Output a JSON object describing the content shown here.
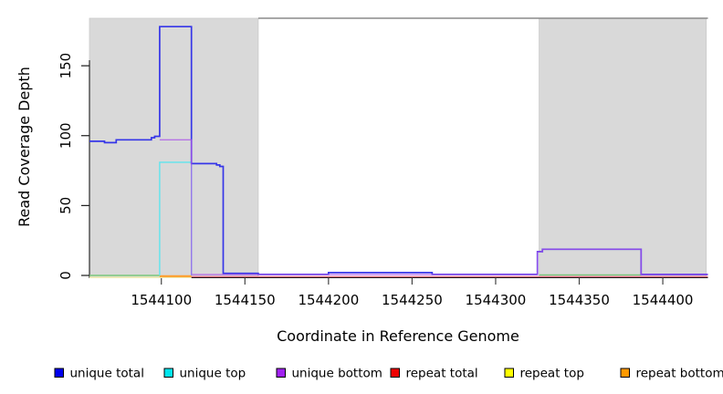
{
  "page": {
    "background": "#ffffff",
    "plot_background": "#ffffff"
  },
  "chart_data": {
    "type": "line",
    "title": "",
    "xlabel": "Coordinate in Reference Genome",
    "ylabel": "Read Coverage Depth",
    "xlim": [
      1544057,
      1544427
    ],
    "ylim": [
      0,
      184
    ],
    "grid": false,
    "x_ticks": [
      1544100,
      1544150,
      1544200,
      1544250,
      1544300,
      1544350,
      1544400
    ],
    "x_tick_labels": [
      "1544100",
      "1544150",
      "1544200",
      "1544250",
      "1544300",
      "1544350",
      "1544400"
    ],
    "y_ticks": [
      0,
      50,
      100,
      150
    ],
    "y_tick_labels": [
      "0",
      "50",
      "100",
      "150"
    ],
    "shaded_regions": [
      {
        "name": "left-gray-band",
        "x0": 1544057,
        "x1": 1544158,
        "color": "#d9d9d9"
      },
      {
        "name": "right-gray-band",
        "x0": 1544326,
        "x1": 1544426,
        "color": "#d9d9d9"
      }
    ],
    "series": [
      {
        "name": "repeat top",
        "color": "#efeab2",
        "width": 1.6,
        "dy": 2.2,
        "opacity": 1,
        "points": [
          [
            1544057,
            0
          ],
          [
            1544118,
            0
          ]
        ]
      },
      {
        "name": "repeat total",
        "color": "#e2697e",
        "width": 1.2,
        "dy": 1.4,
        "opacity": 1,
        "points": [
          [
            1544118,
            0
          ],
          [
            1544427,
            0
          ]
        ]
      },
      {
        "name": "zero-line green left",
        "color": "#7cc87c",
        "width": 1.4,
        "dy": 0,
        "opacity": 1,
        "points": [
          [
            1544057,
            0
          ],
          [
            1544099,
            0
          ]
        ]
      },
      {
        "name": "zero-line green right",
        "color": "#7cc87c",
        "width": 1.4,
        "dy": -0.6,
        "opacity": 1,
        "points": [
          [
            1544326,
            0
          ],
          [
            1544387,
            0
          ]
        ]
      },
      {
        "name": "repeat bottom",
        "color": "#ff9e2e",
        "width": 2.2,
        "dy": 0.8,
        "opacity": 1,
        "points": [
          [
            1544099,
            0
          ],
          [
            1544118,
            0
          ]
        ]
      },
      {
        "name": "unique top",
        "color": "#5fe4ee",
        "width": 1.4,
        "dy": 0,
        "opacity": 1,
        "points": [
          [
            1544099,
            0
          ],
          [
            1544099,
            81
          ],
          [
            1544118,
            81
          ],
          [
            1544118,
            0
          ]
        ]
      },
      {
        "name": "unique total",
        "color": "#3636e8",
        "width": 1.7,
        "dy": 0,
        "opacity": 1,
        "points": [
          [
            1544057,
            96
          ],
          [
            1544066,
            96
          ],
          [
            1544066,
            95
          ],
          [
            1544073,
            95
          ],
          [
            1544073,
            97
          ],
          [
            1544094,
            97
          ],
          [
            1544094,
            98.5
          ],
          [
            1544096,
            98.5
          ],
          [
            1544096,
            99.5
          ],
          [
            1544099,
            99.5
          ],
          [
            1544099,
            178
          ],
          [
            1544118,
            178
          ],
          [
            1544118,
            80
          ],
          [
            1544133,
            80
          ],
          [
            1544133,
            79
          ],
          [
            1544135,
            79
          ],
          [
            1544135,
            78
          ],
          [
            1544137,
            78
          ],
          [
            1544137,
            1.5
          ],
          [
            1544158,
            1.5
          ],
          [
            1544158,
            0.8
          ],
          [
            1544200,
            0.8
          ],
          [
            1544200,
            2
          ],
          [
            1544262,
            2
          ],
          [
            1544262,
            0.8
          ],
          [
            1544325,
            0.8
          ],
          [
            1544325,
            17
          ],
          [
            1544328,
            17
          ],
          [
            1544328,
            18.7
          ],
          [
            1544387,
            18.7
          ],
          [
            1544387,
            0.7
          ],
          [
            1544427,
            0.7
          ]
        ]
      },
      {
        "name": "unique bottom",
        "color": "#a952e8",
        "width": 1.4,
        "dy": 0,
        "opacity": 0.75,
        "points": [
          [
            1544099,
            97
          ],
          [
            1544118,
            97
          ],
          [
            1544118,
            0.6
          ],
          [
            1544325,
            0.6
          ],
          [
            1544325,
            17
          ],
          [
            1544328,
            17
          ],
          [
            1544328,
            18.7
          ],
          [
            1544387,
            18.7
          ],
          [
            1544387,
            0.6
          ],
          [
            1544427,
            0.6
          ]
        ]
      }
    ]
  },
  "legend": {
    "items": [
      {
        "label": "unique total",
        "color": "#0000ee"
      },
      {
        "label": "unique top",
        "color": "#00e5ee"
      },
      {
        "label": "unique bottom",
        "color": "#a020f0"
      },
      {
        "label": "repeat total",
        "color": "#ee0000"
      },
      {
        "label": "repeat top",
        "color": "#ffff00"
      },
      {
        "label": "repeat bottom",
        "color": "#ff9900"
      }
    ]
  }
}
